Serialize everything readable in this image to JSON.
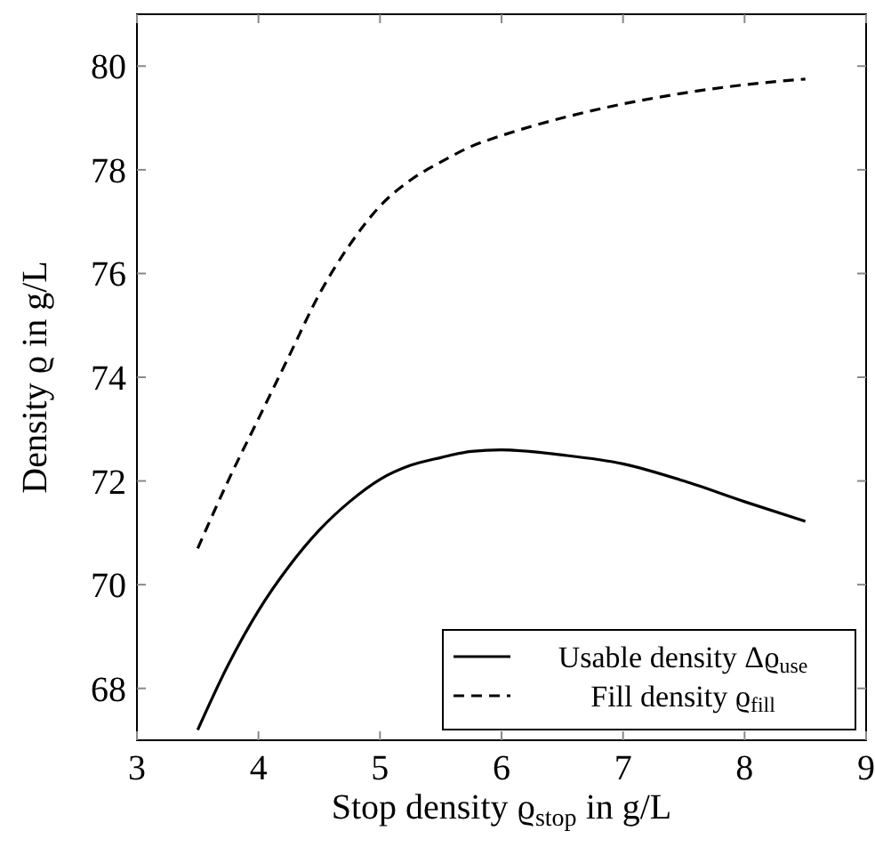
{
  "chart_data": {
    "type": "line",
    "xlabel": "Stop density ϱ$_{stop}$ in g/L",
    "ylabel": "Density ϱ in g/L",
    "xlim": [
      3,
      9
    ],
    "ylim": [
      67,
      81
    ],
    "xticks": [
      3,
      4,
      5,
      6,
      7,
      8,
      9
    ],
    "yticks": [
      68,
      70,
      72,
      74,
      76,
      78,
      80
    ],
    "grid": false,
    "legend": "bottom right",
    "marker": "none",
    "series": [
      {
        "name": "Usable density Δϱ$_{use}$",
        "color": "#000000",
        "line_style": "solid",
        "x": [
          3.5,
          3.75,
          4,
          4.25,
          4.5,
          4.75,
          5,
          5.25,
          5.5,
          5.75,
          6,
          6.5,
          7,
          7.5,
          8,
          8.5
        ],
        "values": [
          67.2,
          68.45,
          69.5,
          70.35,
          71.05,
          71.6,
          72.03,
          72.3,
          72.45,
          72.57,
          72.6,
          72.5,
          72.33,
          72.0,
          71.6,
          71.22
        ]
      },
      {
        "name": "Fill density ϱ$_{fill}$",
        "color": "#000000",
        "line_style": "dashed",
        "x": [
          3.5,
          3.75,
          4,
          4.25,
          4.5,
          4.75,
          5,
          5.25,
          5.5,
          5.75,
          6,
          6.5,
          7,
          7.5,
          8,
          8.5
        ],
        "values": [
          70.7,
          72.0,
          73.2,
          74.4,
          75.6,
          76.55,
          77.3,
          77.8,
          78.15,
          78.45,
          78.66,
          79.0,
          79.27,
          79.48,
          79.64,
          79.75
        ]
      }
    ]
  }
}
